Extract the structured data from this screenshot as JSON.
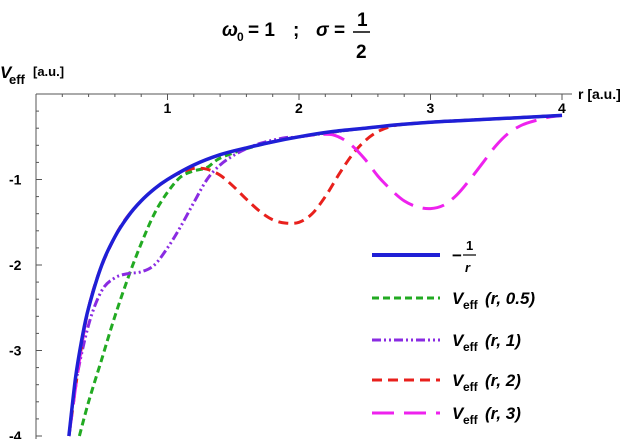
{
  "chart_data": {
    "type": "line",
    "title": {
      "omega": "ω",
      "omega_sub": "0",
      "omega_value": "= 1",
      "separator": ";",
      "sigma": "σ",
      "sigma_eq": "=",
      "sigma_num": "1",
      "sigma_den": "2"
    },
    "ylabel": {
      "main": "V",
      "sub": "eff",
      "unit": "[a.u.]"
    },
    "xlabel": "r [a.u.]",
    "xlim": [
      0,
      4.05
    ],
    "ylim": [
      -4,
      0.1
    ],
    "x_ticks": [
      "1",
      "2",
      "3",
      "4"
    ],
    "y_ticks": [
      "-1",
      "-2",
      "-3",
      "-4"
    ],
    "legend_position": "bottom-right",
    "series": [
      {
        "legend_prefix": "−",
        "legend_num": "1",
        "legend_den": "r",
        "color": "#1f1fd6",
        "style": "solid",
        "x": [
          0.25,
          0.3,
          0.35,
          0.4,
          0.5,
          0.6,
          0.7,
          0.8,
          0.9,
          1.0,
          1.2,
          1.4,
          1.6,
          1.8,
          2.0,
          2.25,
          2.5,
          2.75,
          3.0,
          3.25,
          3.5,
          3.75,
          4.0
        ],
        "values": [
          -4.0,
          -3.33,
          -2.86,
          -2.5,
          -2.0,
          -1.67,
          -1.43,
          -1.25,
          -1.11,
          -1.0,
          -0.83,
          -0.71,
          -0.63,
          -0.56,
          -0.5,
          -0.44,
          -0.4,
          -0.36,
          -0.33,
          -0.31,
          -0.29,
          -0.27,
          -0.25
        ]
      },
      {
        "legend_main": "V",
        "legend_sub": "eff",
        "legend_args": "(r, 0.5)",
        "color": "#22aa22",
        "style": "short-dash",
        "x": [
          0.33,
          0.4,
          0.5,
          0.6,
          0.7,
          0.8,
          0.9,
          1.0,
          1.1,
          1.2,
          1.3,
          1.4,
          1.6,
          1.8,
          2.0,
          2.5,
          3.0,
          3.5,
          4.0
        ],
        "values": [
          -4.0,
          -3.6,
          -3.1,
          -2.6,
          -2.15,
          -1.75,
          -1.4,
          -1.15,
          -0.97,
          -0.9,
          -0.86,
          -0.75,
          -0.64,
          -0.56,
          -0.5,
          -0.4,
          -0.33,
          -0.29,
          -0.25
        ]
      },
      {
        "legend_main": "V",
        "legend_sub": "eff",
        "legend_args": "(r, 1)",
        "color": "#8a2be2",
        "style": "dash-dot",
        "x": [
          0.25,
          0.3,
          0.4,
          0.5,
          0.6,
          0.7,
          0.8,
          0.9,
          1.0,
          1.1,
          1.2,
          1.3,
          1.4,
          1.5,
          1.6,
          1.7,
          1.8,
          1.9,
          2.0,
          2.5,
          3.0,
          3.5,
          4.0
        ],
        "values": [
          -4.0,
          -3.4,
          -2.7,
          -2.3,
          -2.15,
          -2.1,
          -2.08,
          -2.0,
          -1.8,
          -1.55,
          -1.27,
          -1.0,
          -0.83,
          -0.72,
          -0.64,
          -0.58,
          -0.54,
          -0.51,
          -0.5,
          -0.4,
          -0.33,
          -0.29,
          -0.25
        ]
      },
      {
        "legend_main": "V",
        "legend_sub": "eff",
        "legend_args": "(r, 2)",
        "color": "#e8201c",
        "style": "dash",
        "x": [
          0.25,
          0.4,
          0.6,
          0.8,
          1.0,
          1.1,
          1.2,
          1.3,
          1.4,
          1.5,
          1.6,
          1.7,
          1.8,
          1.9,
          2.0,
          2.1,
          2.2,
          2.3,
          2.4,
          2.5,
          2.6,
          2.7,
          2.8,
          2.9,
          3.0,
          3.5,
          4.0
        ],
        "values": [
          -4.0,
          -2.5,
          -1.67,
          -1.25,
          -1.0,
          -0.92,
          -0.87,
          -0.88,
          -0.95,
          -1.08,
          -1.23,
          -1.37,
          -1.47,
          -1.51,
          -1.5,
          -1.4,
          -1.2,
          -0.95,
          -0.72,
          -0.55,
          -0.44,
          -0.38,
          -0.35,
          -0.34,
          -0.33,
          -0.29,
          -0.25
        ]
      },
      {
        "legend_main": "V",
        "legend_sub": "eff",
        "legend_args": "(r, 3)",
        "color": "#ee22ee",
        "style": "long-dash",
        "x": [
          0.25,
          0.4,
          0.6,
          0.8,
          1.0,
          1.2,
          1.4,
          1.6,
          1.8,
          2.0,
          2.2,
          2.3,
          2.4,
          2.5,
          2.6,
          2.7,
          2.8,
          2.9,
          3.0,
          3.1,
          3.2,
          3.3,
          3.4,
          3.5,
          3.6,
          3.7,
          3.8,
          3.9,
          4.0
        ],
        "values": [
          -4.0,
          -2.5,
          -1.67,
          -1.25,
          -1.0,
          -0.83,
          -0.71,
          -0.63,
          -0.56,
          -0.5,
          -0.47,
          -0.5,
          -0.6,
          -0.76,
          -0.96,
          -1.12,
          -1.25,
          -1.32,
          -1.34,
          -1.3,
          -1.18,
          -1.0,
          -0.8,
          -0.6,
          -0.45,
          -0.36,
          -0.31,
          -0.27,
          -0.25
        ]
      }
    ]
  }
}
